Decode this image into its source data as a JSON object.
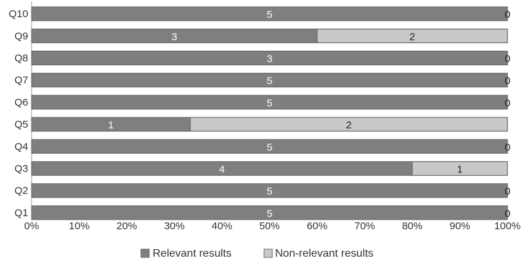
{
  "chart_data": {
    "type": "bar",
    "orientation": "horizontal",
    "stacked": "percent",
    "categories": [
      "Q10",
      "Q9",
      "Q8",
      "Q7",
      "Q6",
      "Q5",
      "Q4",
      "Q3",
      "Q2",
      "Q1"
    ],
    "series": [
      {
        "name": "Relevant results",
        "values": [
          5,
          3,
          3,
          5,
          5,
          1,
          5,
          4,
          5,
          5
        ],
        "color": "#7f7f7f"
      },
      {
        "name": "Non-relevant results",
        "values": [
          0,
          2,
          0,
          0,
          0,
          2,
          0,
          1,
          0,
          0
        ],
        "color": "#c8c8c8"
      }
    ],
    "x_ticks": [
      "0%",
      "10%",
      "20%",
      "30%",
      "40%",
      "50%",
      "60%",
      "70%",
      "80%",
      "90%",
      "100%"
    ],
    "xlim": [
      0,
      100
    ],
    "grid": false,
    "legend_position": "bottom",
    "title": "",
    "xlabel": "",
    "ylabel": ""
  }
}
